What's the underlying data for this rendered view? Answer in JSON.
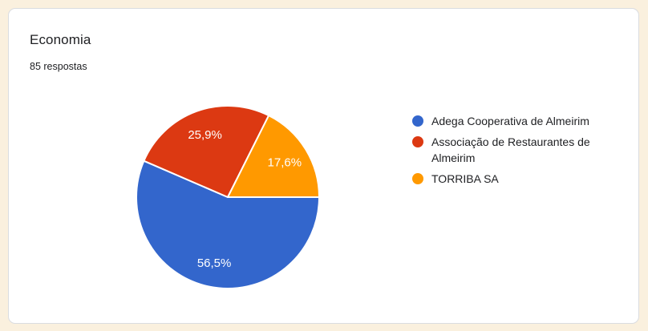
{
  "page": {
    "background_color": "#FAF0DE"
  },
  "card": {
    "title": "Economia",
    "subtitle": "85 respostas",
    "background_color": "#FFFFFF",
    "border_color": "#DADCE0"
  },
  "chart_data": {
    "type": "pie",
    "title": "Economia",
    "subtitle": "85 respostas",
    "responses_count": 85,
    "legend_position": "right",
    "start_angle_deg": 0,
    "direction": "clockwise",
    "label_text_color": "#FFFFFF",
    "series": [
      {
        "label": "Adega Cooperativa de Almeirim",
        "percent": 56.5,
        "percent_display": "56,5%",
        "color": "#3366CC"
      },
      {
        "label": "Associação de Restaurantes de Almeirim",
        "percent": 25.9,
        "percent_display": "25,9%",
        "color": "#DC3912"
      },
      {
        "label": "TORRIBA SA",
        "percent": 17.6,
        "percent_display": "17,6%",
        "color": "#FF9900"
      }
    ]
  }
}
